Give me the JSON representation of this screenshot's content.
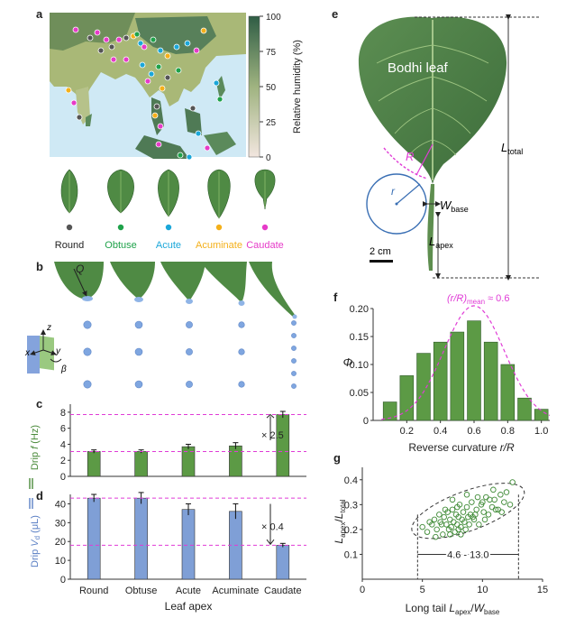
{
  "panel_letters": {
    "a": "a",
    "b": "b",
    "c": "c",
    "d": "d",
    "e": "e",
    "f": "f",
    "g": "g"
  },
  "colors": {
    "round": "#555555",
    "obtuse": "#1fa24a",
    "acute": "#1ba7d9",
    "acuminate": "#f4b01a",
    "caudate": "#e63bc8",
    "green_bar": "#5c9a45",
    "blue_bar": "#7f9fd6",
    "magenta": "#e03bd6"
  },
  "panel_a": {
    "colorbar_label": "Relative humidity (%)",
    "colorbar_ticks": [
      "100",
      "75",
      "50",
      "25",
      "0"
    ],
    "leaf_labels": [
      "Round",
      "Obtuse",
      "Acute",
      "Acuminate",
      "Caudate"
    ]
  },
  "panel_b": {
    "q_label": "Q",
    "axis_z": "z",
    "axis_x": "x",
    "axis_y": "y",
    "axis_beta": "β"
  },
  "panel_e": {
    "leaf_name": "Bodhi leaf",
    "R_label": "R",
    "r_label": "r",
    "w_base": "W",
    "w_base_sub": "base",
    "l_apex": "L",
    "l_apex_sub": "apex",
    "l_total": "L",
    "l_total_sub": "total",
    "scale": "2 cm"
  },
  "chart_data": [
    {
      "id": "c",
      "type": "bar",
      "categories": [
        "Round",
        "Obtuse",
        "Acute",
        "Acuminate",
        "Caudate"
      ],
      "values": [
        3.1,
        3.1,
        3.7,
        3.8,
        7.7
      ],
      "errors": [
        0.2,
        0.2,
        0.3,
        0.4,
        0.4
      ],
      "ylabel": "Drip",
      "ylabel_var": "f",
      "ylabel_unit": "(Hz)",
      "ylim": [
        0,
        9
      ],
      "yticks": [
        "0",
        "2",
        "4",
        "6",
        "8"
      ],
      "annotation": "× 2.5"
    },
    {
      "id": "d",
      "type": "bar",
      "categories": [
        "Round",
        "Obtuse",
        "Acute",
        "Acuminate",
        "Caudate"
      ],
      "values": [
        43,
        43,
        37,
        36,
        18
      ],
      "errors": [
        2,
        3,
        3,
        4,
        1
      ],
      "ylabel": "Drip",
      "ylabel_var": "V",
      "ylabel_sub": "d",
      "ylabel_unit": "(μL)",
      "ylim": [
        0,
        45
      ],
      "yticks": [
        "0",
        "10",
        "20",
        "30",
        "40"
      ],
      "xlabel": "Leaf apex",
      "annotation": "× 0.4"
    },
    {
      "id": "f",
      "type": "bar",
      "x": [
        0.1,
        0.2,
        0.3,
        0.4,
        0.5,
        0.6,
        0.7,
        0.8,
        0.9,
        1.0
      ],
      "values": [
        0.033,
        0.08,
        0.12,
        0.14,
        0.158,
        0.178,
        0.14,
        0.1,
        0.04,
        0.02
      ],
      "xlabel": "Reverse curvature",
      "xlabel_var": "r/R",
      "ylabel": "Φ",
      "ylim": [
        0,
        0.2
      ],
      "yticks": [
        "0",
        "0.05",
        "0.10",
        "0.15",
        "0.20"
      ],
      "xticks": [
        "0.2",
        "0.4",
        "0.6",
        "0.8",
        "1.0"
      ],
      "annotation": "(r/R)",
      "annotation_sub": "mean",
      "annotation_tail": " ≈ 0.6"
    },
    {
      "id": "g",
      "type": "scatter",
      "xlabel": "Long tail ",
      "xlabel_var": "L",
      "xlabel_sub": "apex",
      "xlabel_mid": "/",
      "xlabel_var2": "W",
      "xlabel_sub2": "base",
      "ylabel_var": "L",
      "ylabel_sub": "apex",
      "ylabel_mid": "/",
      "ylabel_var2": "L",
      "ylabel_sub2": "total",
      "xlim": [
        0,
        15
      ],
      "ylim": [
        0,
        0.45
      ],
      "xticks": [
        "0",
        "5",
        "10",
        "15"
      ],
      "yticks": [
        "0.1",
        "0.2",
        "0.3",
        "0.4"
      ],
      "range_label": "4.6 - 13.0",
      "x": [
        5.0,
        5.4,
        5.8,
        6.0,
        6.2,
        6.4,
        6.5,
        6.7,
        6.8,
        7.0,
        7.1,
        7.2,
        7.3,
        7.4,
        7.5,
        7.6,
        7.7,
        7.8,
        7.9,
        8.0,
        8.1,
        8.2,
        8.3,
        8.4,
        8.5,
        8.6,
        8.7,
        8.8,
        9.0,
        9.1,
        9.3,
        9.5,
        9.7,
        9.9,
        10.1,
        10.3,
        10.5,
        10.8,
        11.0,
        11.3,
        11.5,
        11.8,
        12.0,
        12.3,
        6.1,
        6.9,
        7.5,
        8.2,
        8.9,
        9.6,
        10.2,
        10.9,
        11.6,
        6.6,
        7.3,
        8.0,
        8.7,
        9.4,
        10.0,
        12.5,
        5.6,
        7.9,
        9.2,
        10.6,
        11.1
      ],
      "y": [
        0.21,
        0.19,
        0.22,
        0.24,
        0.2,
        0.26,
        0.23,
        0.18,
        0.25,
        0.22,
        0.27,
        0.2,
        0.24,
        0.21,
        0.28,
        0.23,
        0.19,
        0.26,
        0.22,
        0.25,
        0.3,
        0.21,
        0.24,
        0.27,
        0.23,
        0.2,
        0.29,
        0.25,
        0.26,
        0.31,
        0.24,
        0.28,
        0.22,
        0.3,
        0.27,
        0.33,
        0.26,
        0.29,
        0.32,
        0.28,
        0.34,
        0.31,
        0.35,
        0.3,
        0.17,
        0.28,
        0.32,
        0.18,
        0.22,
        0.33,
        0.24,
        0.36,
        0.27,
        0.22,
        0.18,
        0.2,
        0.34,
        0.26,
        0.31,
        0.39,
        0.23,
        0.29,
        0.25,
        0.32,
        0.28
      ]
    }
  ]
}
